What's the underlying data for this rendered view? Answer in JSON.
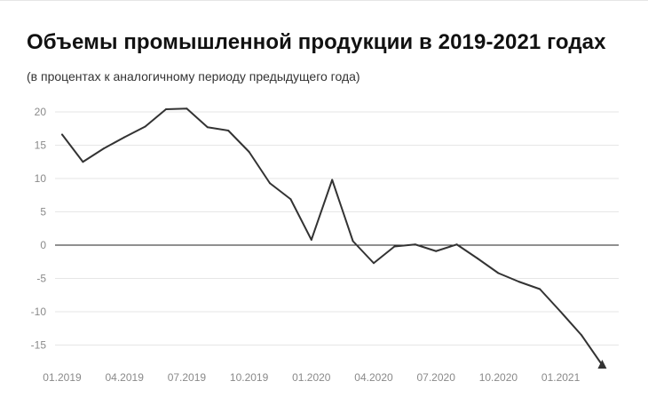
{
  "header": {
    "title": "Объемы промышленной продукции в 2019-2021 годах",
    "subtitle": "(в процентах к аналогичному периоду предыдущего года)"
  },
  "chart_data": {
    "type": "line",
    "title": "Объемы промышленной продукции в 2019-2021 годах",
    "subtitle": "(в процентах к аналогичному периоду предыдущего года)",
    "xlabel": "",
    "ylabel": "",
    "ylim": [
      -18,
      20
    ],
    "yticks": [
      20,
      15,
      10,
      5,
      0,
      -5,
      -10,
      -15
    ],
    "x_tick_labels": [
      "01.2019",
      "04.2019",
      "07.2019",
      "10.2019",
      "01.2020",
      "04.2020",
      "07.2020",
      "10.2020",
      "01.2021"
    ],
    "grid": true,
    "zero_line": true,
    "legend": "none",
    "line_color": "#333333",
    "grid_color": "#e6e6e6",
    "x": [
      "01.2019",
      "02.2019",
      "03.2019",
      "04.2019",
      "05.2019",
      "06.2019",
      "07.2019",
      "08.2019",
      "09.2019",
      "10.2019",
      "11.2019",
      "12.2019",
      "01.2020",
      "02.2020",
      "03.2020",
      "04.2020",
      "05.2020",
      "06.2020",
      "07.2020",
      "08.2020",
      "09.2020",
      "10.2020",
      "11.2020",
      "12.2020",
      "01.2021",
      "02.2021",
      "03.2021"
    ],
    "values": [
      16.6,
      12.5,
      14.5,
      16.2,
      17.8,
      20.4,
      20.5,
      17.7,
      17.2,
      14.0,
      9.3,
      6.9,
      0.8,
      9.8,
      0.6,
      -2.7,
      -0.2,
      0.1,
      -0.9,
      0.1,
      -2.0,
      -4.2,
      -5.5,
      -6.6,
      -10.0,
      -13.5,
      -18.0
    ]
  }
}
